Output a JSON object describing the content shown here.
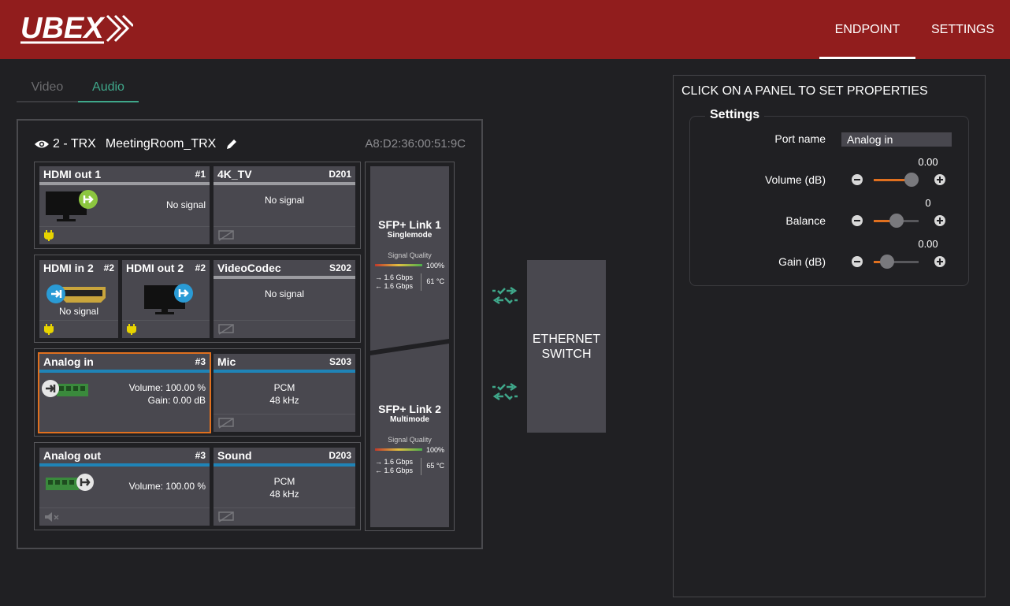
{
  "header": {
    "brand": "UBEX",
    "nav": [
      {
        "label": "ENDPOINT",
        "active": true
      },
      {
        "label": "SETTINGS",
        "active": false
      }
    ],
    "bg_color": "#911d1d"
  },
  "tabs": [
    {
      "label": "Video",
      "active": false
    },
    {
      "label": "Audio",
      "active": true
    }
  ],
  "device": {
    "title": "2 - TRX",
    "name": "MeetingRoom_TRX",
    "mac": "A8:D2:36:00:51:9C",
    "groups": [
      {
        "left": {
          "title": "HDMI out 1",
          "id": "#1",
          "status": "No signal",
          "icon": "monitor-out-icon"
        },
        "right": {
          "title": "4K_TV",
          "id": "D201",
          "status": "No signal"
        }
      },
      {
        "left_a": {
          "title": "HDMI in 2",
          "id": "#2",
          "status": "No signal",
          "icon": "hdmi-in-icon"
        },
        "left_b": {
          "title": "HDMI out 2",
          "id": "#2",
          "icon": "monitor-out-icon"
        },
        "right": {
          "title": "VideoCodec",
          "id": "S202",
          "status": "No signal"
        }
      },
      {
        "left": {
          "title": "Analog in",
          "id": "#3",
          "volume": "Volume: 100.00 %",
          "gain": "Gain: 0.00 dB",
          "icon": "analog-in-icon"
        },
        "right": {
          "title": "Mic",
          "id": "S203",
          "format": "PCM",
          "rate": "48 kHz"
        }
      },
      {
        "left": {
          "title": "Analog out",
          "id": "#3",
          "volume": "Volume: 100.00 %",
          "icon": "analog-out-icon"
        },
        "right": {
          "title": "Sound",
          "id": "D203",
          "format": "PCM",
          "rate": "48 kHz"
        }
      }
    ],
    "sfp": [
      {
        "title": "SFP+ Link 1",
        "mode": "Singlemode",
        "sq_label": "Signal Quality",
        "quality": "100%",
        "tx": "1.6 Gbps",
        "rx": "1.6 Gbps",
        "temp": "61 °C"
      },
      {
        "title": "SFP+ Link 2",
        "mode": "Multimode",
        "sq_label": "Signal Quality",
        "quality": "100%",
        "tx": "1.6 Gbps",
        "rx": "1.6 Gbps",
        "temp": "65 °C"
      }
    ]
  },
  "switch": {
    "line1": "ETHERNET",
    "line2": "SWITCH"
  },
  "properties": {
    "title": "CLICK ON A PANEL TO SET PROPERTIES",
    "legend": "Settings",
    "port_name_label": "Port name",
    "port_name_value": "Analog in",
    "volume": {
      "label": "Volume (dB)",
      "value": "0.00",
      "level": 0.85
    },
    "balance": {
      "label": "Balance",
      "value": "0",
      "level": 0.5
    },
    "gain": {
      "label": "Gain (dB)",
      "value": "0.00",
      "level": 0.3
    }
  },
  "colors": {
    "accent": "#e0701f",
    "tab_active": "#3fa78a",
    "bar_blue": "#1f84b7",
    "link_green": "#3fa78a"
  }
}
